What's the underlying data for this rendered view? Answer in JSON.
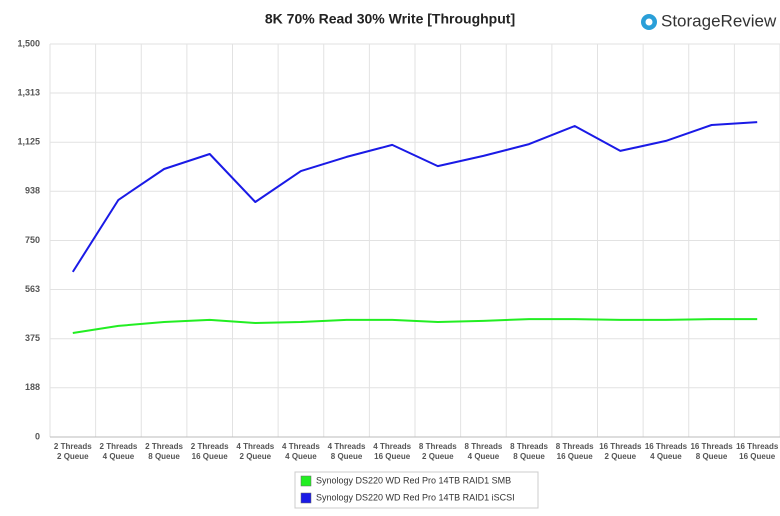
{
  "chart_data": {
    "type": "line",
    "title": "8K 70% Read 30% Write [Throughput]",
    "logo": "StorageReview",
    "categories": [
      [
        "2 Threads",
        "2 Queue"
      ],
      [
        "2 Threads",
        "4 Queue"
      ],
      [
        "2 Threads",
        "8 Queue"
      ],
      [
        "2 Threads",
        "16 Queue"
      ],
      [
        "4 Threads",
        "2 Queue"
      ],
      [
        "4 Threads",
        "4 Queue"
      ],
      [
        "4 Threads",
        "8 Queue"
      ],
      [
        "4 Threads",
        "16 Queue"
      ],
      [
        "8 Threads",
        "2 Queue"
      ],
      [
        "8 Threads",
        "4 Queue"
      ],
      [
        "8 Threads",
        "8 Queue"
      ],
      [
        "8 Threads",
        "16 Queue"
      ],
      [
        "16 Threads",
        "2 Queue"
      ],
      [
        "16 Threads",
        "4 Queue"
      ],
      [
        "16 Threads",
        "8 Queue"
      ],
      [
        "16 Threads",
        "16 Queue"
      ]
    ],
    "series": [
      {
        "name": "Synology DS220 WD Red Pro 14TB RAID1 SMB",
        "color": "#22ee22",
        "values": [
          397,
          424,
          439,
          447,
          435,
          439,
          447,
          447,
          439,
          443,
          450,
          450,
          447,
          447,
          450,
          450
        ]
      },
      {
        "name": "Synology DS220 WD Red Pro 14TB RAID1 iSCSI",
        "color": "#1a1ae6",
        "values": [
          630,
          905,
          1023,
          1080,
          897,
          1015,
          1069,
          1115,
          1034,
          1073,
          1118,
          1187,
          1092,
          1130,
          1191,
          1202
        ]
      }
    ],
    "ylim": [
      0,
      1500
    ],
    "yticks": [
      0,
      188,
      375,
      563,
      750,
      938,
      {
        "value": 1125,
        "label": "1,125"
      },
      {
        "value": 1313,
        "label": "1,313"
      },
      {
        "value": 1500,
        "label": "1,500"
      }
    ],
    "grid": true,
    "legend": "bottom"
  }
}
